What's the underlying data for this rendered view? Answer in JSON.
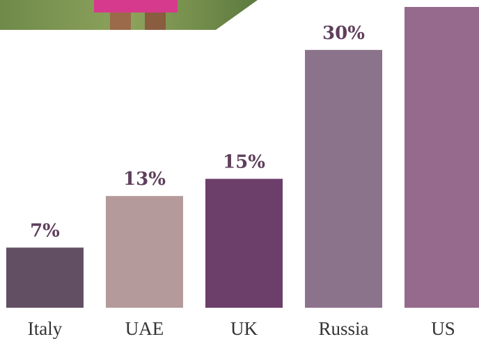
{
  "chart_data": {
    "type": "bar",
    "categories": [
      "Italy",
      "UAE",
      "UK",
      "Russia",
      "US"
    ],
    "values": [
      7,
      13,
      15,
      30,
      35
    ],
    "value_labels": [
      "7%",
      "13%",
      "15%",
      "30%",
      null
    ],
    "colors": [
      "#634f63",
      "#b49a9b",
      "#6c3f6a",
      "#8c738c",
      "#956a8c"
    ]
  }
}
